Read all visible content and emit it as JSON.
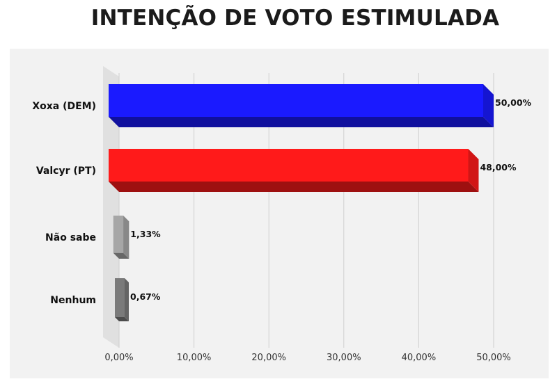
{
  "chart_data": {
    "type": "bar",
    "orientation": "horizontal",
    "title": "INTENÇÃO DE VOTO ESTIMULADA",
    "categories": [
      "Xoxa (DEM)",
      "Valcyr (PT)",
      "Não sabe",
      "Nenhum"
    ],
    "values": [
      50.0,
      48.0,
      1.33,
      0.67
    ],
    "value_labels": [
      "50,00%",
      "48,00%",
      "1,33%",
      "0,67%"
    ],
    "colors": [
      "#1a1aff",
      "#ff1a1a",
      "#a6a6a6",
      "#7a7a7a"
    ],
    "xlim": [
      0,
      50
    ],
    "xticks": [
      0,
      10,
      20,
      30,
      40,
      50
    ],
    "xtick_labels": [
      "0,00%",
      "10,00%",
      "20,00%",
      "30,00%",
      "40,00%",
      "50,00%"
    ],
    "grid": true,
    "style": "3d"
  }
}
